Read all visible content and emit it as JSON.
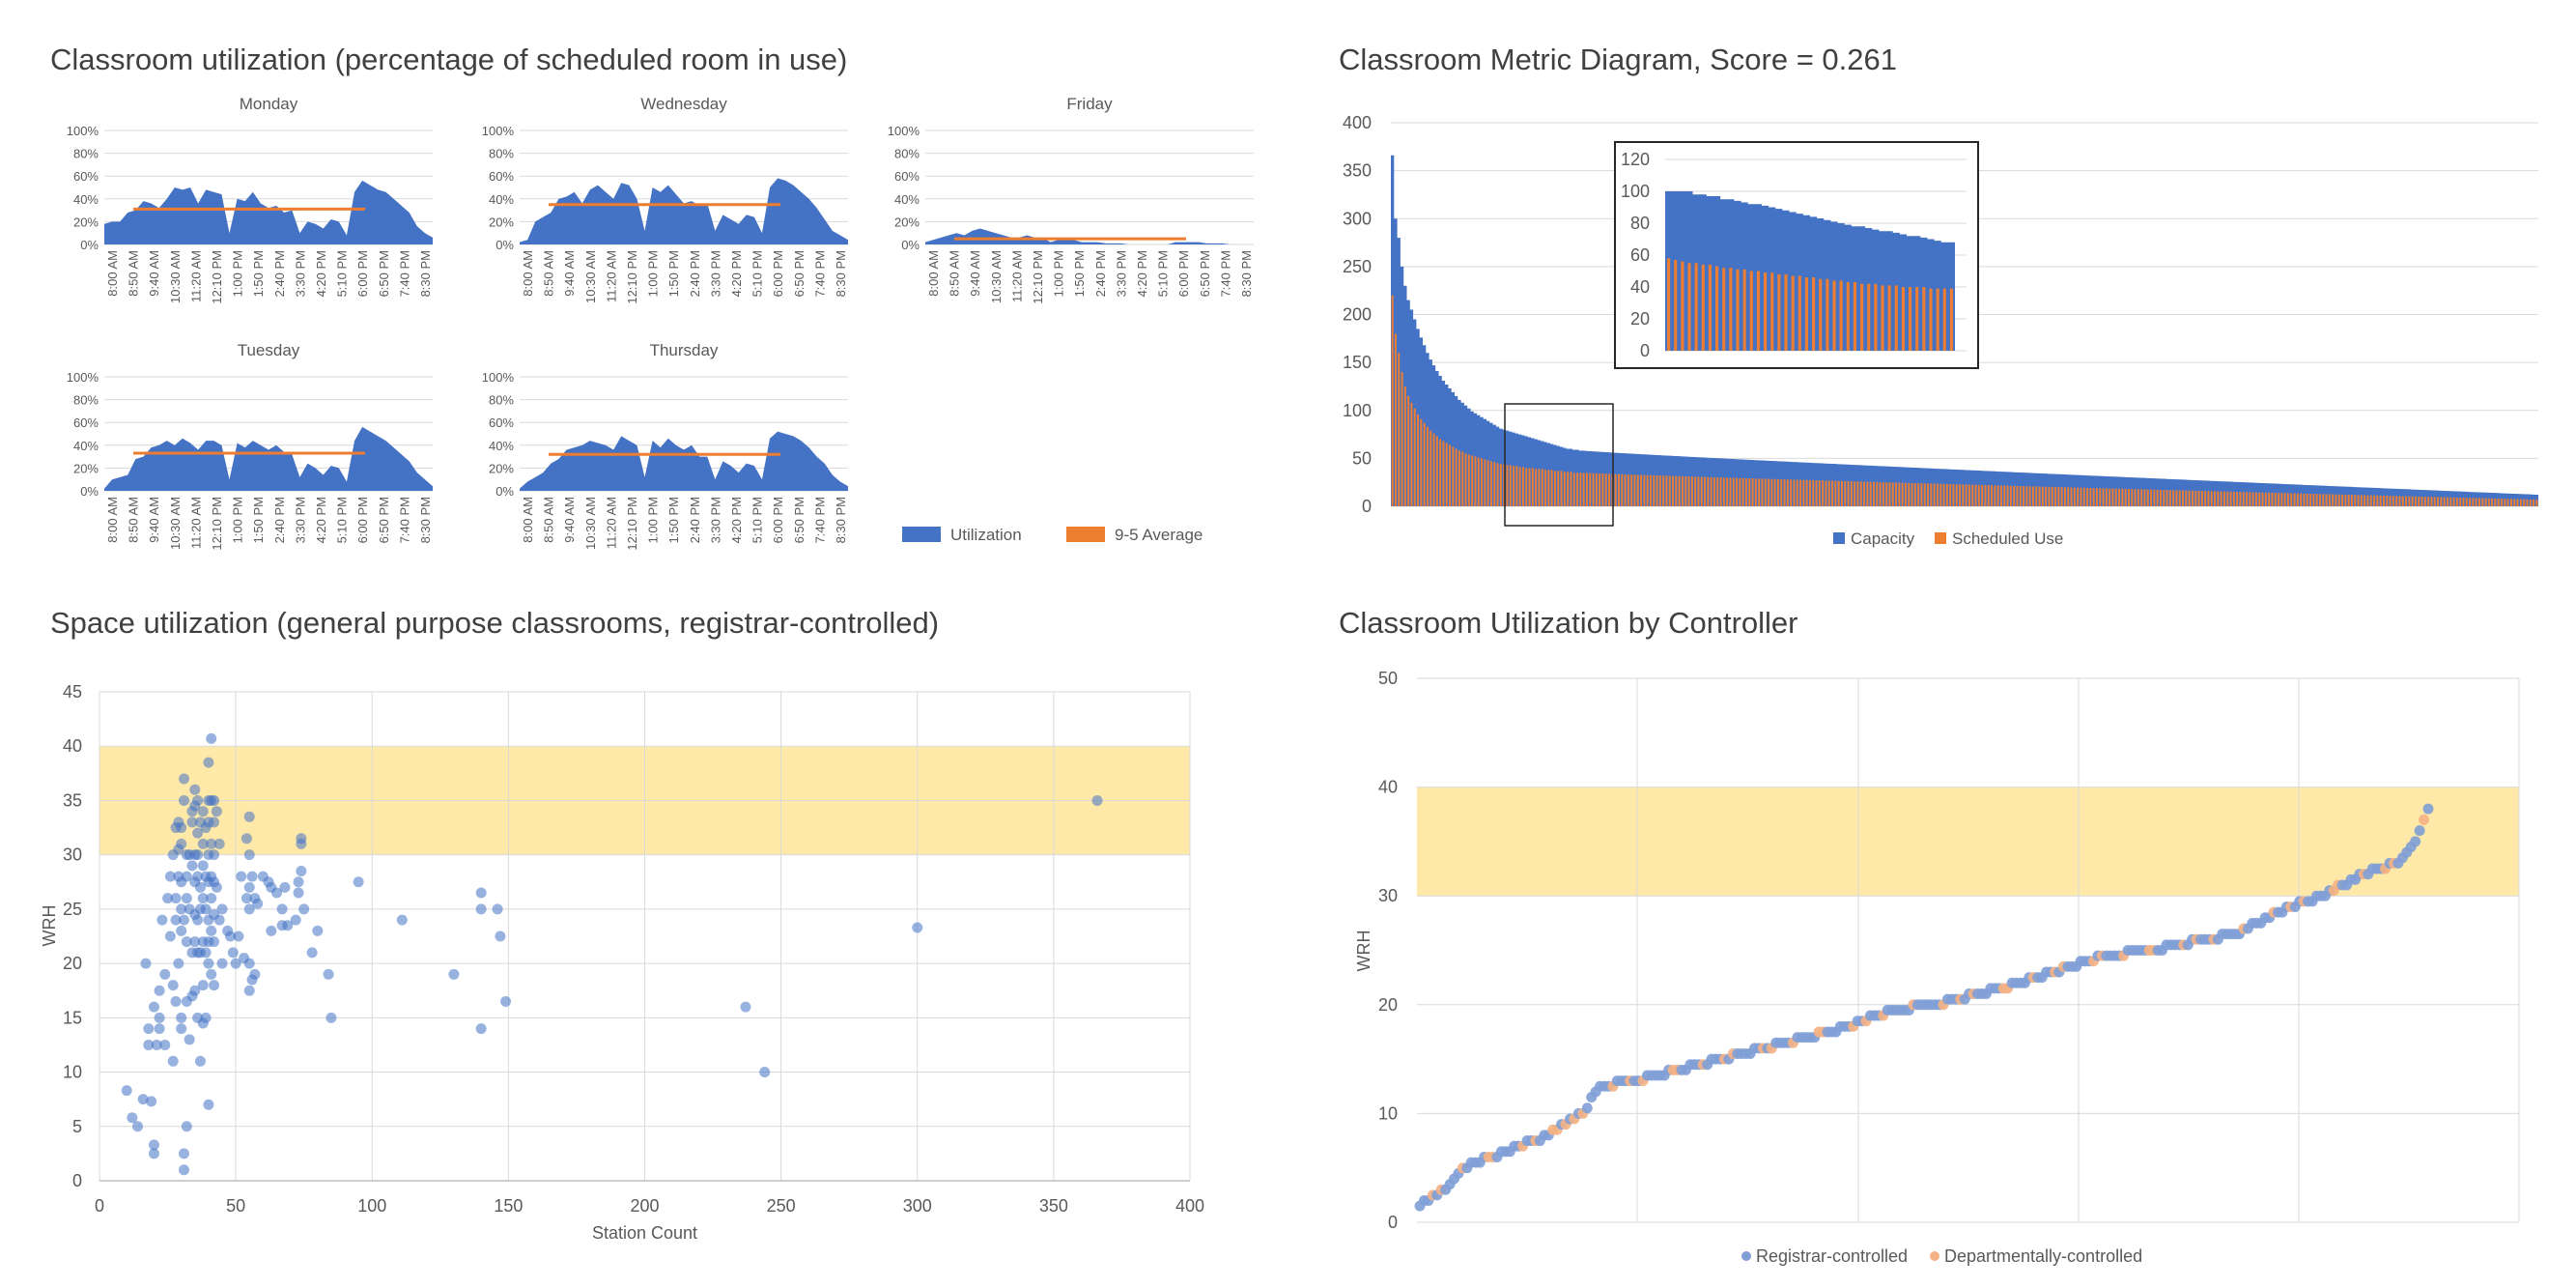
{
  "titles": {
    "util": "Classroom utilization (percentage of scheduled room in use)",
    "metric": "Classroom Metric Diagram, Score = 0.261",
    "space": "Space utilization (general purpose classrooms, registrar-controlled)",
    "controller": "Classroom Utilization by Controller"
  },
  "colors": {
    "blue": "#4472C4",
    "orange": "#ED7D31",
    "band": "#FFE9A8",
    "dot_blue": "#7F9FD6",
    "dot_orange": "#F4B183",
    "grid": "#D9D9D9"
  },
  "chart_data": [
    {
      "id": "daily-utilization",
      "type": "area",
      "time_labels": [
        "8:00 AM",
        "8:50 AM",
        "9:40 AM",
        "10:30 AM",
        "11:20 AM",
        "12:10 PM",
        "1:00 PM",
        "1:50 PM",
        "2:40 PM",
        "3:30 PM",
        "4:20 PM",
        "5:10 PM",
        "6:00 PM",
        "6:50 PM",
        "7:40 PM",
        "8:30 PM"
      ],
      "y_ticks": [
        "0%",
        "20%",
        "40%",
        "60%",
        "80%",
        "100%"
      ],
      "ylim": [
        0,
        100
      ],
      "legend": {
        "utilization": "Utilization",
        "average": "9-5 Average"
      },
      "days": [
        {
          "name": "Monday",
          "average": 31,
          "values": [
            18,
            20,
            20,
            28,
            30,
            38,
            36,
            32,
            40,
            50,
            48,
            50,
            36,
            48,
            46,
            44,
            10,
            40,
            38,
            46,
            36,
            32,
            34,
            28,
            30,
            10,
            20,
            18,
            14,
            22,
            20,
            8,
            46,
            56,
            52,
            48,
            46,
            40,
            34,
            28,
            16,
            10,
            6
          ]
        },
        {
          "name": "Wednesday",
          "average": 35,
          "values": [
            2,
            4,
            20,
            24,
            28,
            40,
            42,
            46,
            36,
            48,
            52,
            46,
            40,
            54,
            52,
            40,
            12,
            50,
            46,
            52,
            44,
            36,
            38,
            34,
            36,
            12,
            26,
            22,
            18,
            26,
            24,
            10,
            50,
            58,
            56,
            52,
            46,
            40,
            32,
            22,
            12,
            8,
            4
          ]
        },
        {
          "name": "Friday",
          "average": 5,
          "values": [
            2,
            4,
            6,
            8,
            10,
            8,
            12,
            14,
            12,
            10,
            8,
            6,
            6,
            8,
            6,
            6,
            2,
            4,
            4,
            4,
            2,
            2,
            2,
            1,
            1,
            1,
            0,
            0,
            0,
            0,
            0,
            0,
            2,
            2,
            2,
            2,
            1,
            1,
            1,
            0,
            0,
            0,
            0
          ]
        },
        {
          "name": "Tuesday",
          "average": 33,
          "values": [
            2,
            10,
            12,
            14,
            28,
            30,
            38,
            40,
            44,
            40,
            46,
            42,
            36,
            44,
            44,
            40,
            10,
            42,
            38,
            44,
            40,
            36,
            40,
            34,
            32,
            12,
            24,
            20,
            14,
            22,
            20,
            8,
            44,
            56,
            52,
            48,
            44,
            38,
            32,
            26,
            16,
            10,
            4
          ]
        },
        {
          "name": "Thursday",
          "average": 32,
          "values": [
            2,
            8,
            12,
            16,
            24,
            28,
            36,
            38,
            40,
            44,
            42,
            40,
            36,
            48,
            44,
            40,
            12,
            44,
            38,
            46,
            40,
            36,
            40,
            30,
            30,
            10,
            26,
            22,
            16,
            24,
            22,
            10,
            46,
            52,
            50,
            48,
            44,
            38,
            30,
            24,
            14,
            8,
            4
          ]
        }
      ]
    },
    {
      "id": "metric-diagram",
      "type": "bar",
      "title": "Classroom Metric Diagram, Score = 0.261",
      "ylim": [
        0,
        400
      ],
      "y_ticks": [
        "0",
        "50",
        "100",
        "150",
        "200",
        "250",
        "300",
        "350",
        "400"
      ],
      "room_count": 360,
      "series": [
        {
          "name": "Capacity",
          "values": [
            366,
            300,
            280,
            250,
            230,
            215,
            205,
            195,
            185,
            176,
            168,
            160,
            153,
            147,
            141,
            136,
            131,
            127,
            123,
            119,
            115,
            111,
            108,
            105,
            102,
            99,
            97,
            95,
            93,
            91,
            89,
            87,
            85,
            83,
            81,
            80,
            79,
            78,
            77,
            76,
            75,
            74,
            73,
            72,
            71,
            70,
            69,
            68,
            67,
            66,
            65,
            64,
            63,
            62,
            61,
            60,
            60,
            59,
            59,
            58
          ]
        },
        {
          "name": "Scheduled Use",
          "values": [
            220,
            180,
            160,
            140,
            125,
            115,
            108,
            102,
            96,
            91,
            87,
            83,
            79,
            76,
            73,
            70,
            68,
            66,
            64,
            62,
            60,
            58,
            57,
            55,
            54,
            53,
            52,
            51,
            50,
            49,
            48,
            47,
            46,
            45,
            44,
            44,
            43,
            43,
            42,
            42,
            41,
            41,
            40,
            40,
            40,
            39,
            39,
            39,
            38,
            38,
            38,
            37,
            37,
            37,
            36,
            36,
            36,
            35,
            35,
            35
          ]
        }
      ],
      "inset": {
        "ylim": [
          0,
          120
        ],
        "y_ticks": [
          "0",
          "20",
          "40",
          "60",
          "80",
          "100",
          "120"
        ],
        "capacity": [
          100,
          100,
          100,
          100,
          98,
          98,
          97,
          97,
          95,
          95,
          94,
          93,
          92,
          92,
          91,
          90,
          89,
          88,
          87,
          86,
          85,
          84,
          83,
          82,
          81,
          80,
          79,
          78,
          78,
          77,
          76,
          75,
          75,
          74,
          73,
          72,
          72,
          71,
          70,
          69,
          68,
          68
        ],
        "scheduled": [
          58,
          57,
          56,
          55,
          55,
          54,
          54,
          53,
          52,
          52,
          51,
          51,
          50,
          50,
          49,
          49,
          48,
          48,
          47,
          47,
          46,
          46,
          45,
          45,
          44,
          44,
          43,
          43,
          42,
          42,
          42,
          41,
          41,
          41,
          40,
          40,
          40,
          40,
          39,
          39,
          39,
          39
        ]
      }
    },
    {
      "id": "space-utilization",
      "type": "scatter",
      "title": "Space utilization (general purpose classrooms, registrar-controlled)",
      "xlabel": "Station Count",
      "ylabel": "WRH",
      "xlim": [
        0,
        400
      ],
      "ylim": [
        0,
        45
      ],
      "x_ticks": [
        "0",
        "50",
        "100",
        "150",
        "200",
        "250",
        "300",
        "350",
        "400"
      ],
      "y_ticks": [
        "0",
        "5",
        "10",
        "15",
        "20",
        "25",
        "30",
        "35",
        "40",
        "45"
      ],
      "band": [
        30,
        40
      ],
      "points": [
        [
          10,
          8.3
        ],
        [
          12,
          5.8
        ],
        [
          14,
          5
        ],
        [
          16,
          7.5
        ],
        [
          17,
          20
        ],
        [
          18,
          14
        ],
        [
          18,
          12.5
        ],
        [
          19,
          7.3
        ],
        [
          20,
          16
        ],
        [
          20,
          3.3
        ],
        [
          20,
          2.5
        ],
        [
          21,
          12.5
        ],
        [
          22,
          17.5
        ],
        [
          22,
          15
        ],
        [
          22,
          14
        ],
        [
          23,
          24
        ],
        [
          24,
          19
        ],
        [
          24,
          12.5
        ],
        [
          25,
          26
        ],
        [
          26,
          28
        ],
        [
          26,
          22.5
        ],
        [
          27,
          30
        ],
        [
          27,
          18
        ],
        [
          27,
          11
        ],
        [
          28,
          32.5
        ],
        [
          28,
          26
        ],
        [
          28,
          24
        ],
        [
          28,
          16.5
        ],
        [
          29,
          33
        ],
        [
          29,
          30.5
        ],
        [
          29,
          28
        ],
        [
          29,
          20
        ],
        [
          30,
          32.5
        ],
        [
          30,
          31
        ],
        [
          30,
          27.5
        ],
        [
          30,
          25
        ],
        [
          30,
          23
        ],
        [
          30,
          15
        ],
        [
          30,
          14
        ],
        [
          31,
          37
        ],
        [
          31,
          35
        ],
        [
          31,
          24
        ],
        [
          31,
          2.5
        ],
        [
          31,
          1
        ],
        [
          32,
          30
        ],
        [
          32,
          28
        ],
        [
          32,
          26
        ],
        [
          32,
          22
        ],
        [
          32,
          16.5
        ],
        [
          32,
          5
        ],
        [
          33,
          30
        ],
        [
          33,
          25
        ],
        [
          33,
          13
        ],
        [
          34,
          34
        ],
        [
          34,
          33
        ],
        [
          34,
          29
        ],
        [
          34,
          21
        ],
        [
          34,
          17
        ],
        [
          35,
          36
        ],
        [
          35,
          34.5
        ],
        [
          35,
          30
        ],
        [
          35,
          27.5
        ],
        [
          35,
          24.5
        ],
        [
          35,
          22
        ],
        [
          35,
          17.5
        ],
        [
          36,
          35
        ],
        [
          36,
          32
        ],
        [
          36,
          30
        ],
        [
          36,
          28
        ],
        [
          36,
          24
        ],
        [
          36,
          21
        ],
        [
          36,
          15
        ],
        [
          37,
          33
        ],
        [
          37,
          27
        ],
        [
          37,
          25
        ],
        [
          37,
          21
        ],
        [
          37,
          11
        ],
        [
          38,
          34
        ],
        [
          38,
          31
        ],
        [
          38,
          29
        ],
        [
          38,
          26
        ],
        [
          38,
          22
        ],
        [
          38,
          18
        ],
        [
          38,
          14.5
        ],
        [
          39,
          32.5
        ],
        [
          39,
          28
        ],
        [
          39,
          25
        ],
        [
          39,
          21
        ],
        [
          39,
          15
        ],
        [
          40,
          38.5
        ],
        [
          40,
          35
        ],
        [
          40,
          33
        ],
        [
          40,
          30
        ],
        [
          40,
          27.5
        ],
        [
          40,
          24
        ],
        [
          40,
          22
        ],
        [
          40,
          20
        ],
        [
          40,
          7
        ],
        [
          41,
          40.7
        ],
        [
          41,
          35
        ],
        [
          41,
          31
        ],
        [
          41,
          28
        ],
        [
          41,
          26
        ],
        [
          41,
          23
        ],
        [
          41,
          19
        ],
        [
          42,
          35
        ],
        [
          42,
          33
        ],
        [
          42,
          30
        ],
        [
          42,
          27.5
        ],
        [
          42,
          24.5
        ],
        [
          42,
          22
        ],
        [
          42,
          18
        ],
        [
          43,
          34
        ],
        [
          43,
          27
        ],
        [
          44,
          31
        ],
        [
          44,
          24
        ],
        [
          45,
          25
        ],
        [
          45,
          20
        ],
        [
          47,
          23
        ],
        [
          48,
          22.5
        ],
        [
          49,
          21
        ],
        [
          50,
          20
        ],
        [
          51,
          22.5
        ],
        [
          52,
          28
        ],
        [
          53,
          20.5
        ],
        [
          54,
          31.5
        ],
        [
          54,
          26
        ],
        [
          55,
          33.5
        ],
        [
          55,
          30
        ],
        [
          55,
          27
        ],
        [
          55,
          25
        ],
        [
          55,
          20
        ],
        [
          55,
          17.5
        ],
        [
          56,
          28
        ],
        [
          56,
          18.5
        ],
        [
          57,
          26
        ],
        [
          57,
          19
        ],
        [
          58,
          25.5
        ],
        [
          60,
          28
        ],
        [
          62,
          27.5
        ],
        [
          63,
          27
        ],
        [
          63,
          23
        ],
        [
          65,
          26.5
        ],
        [
          67,
          25
        ],
        [
          67,
          23.5
        ],
        [
          68,
          27
        ],
        [
          69,
          23.5
        ],
        [
          72,
          24
        ],
        [
          73,
          27.5
        ],
        [
          73,
          26.5
        ],
        [
          74,
          28.5
        ],
        [
          74,
          31.5
        ],
        [
          74,
          31
        ],
        [
          75,
          25
        ],
        [
          78,
          21
        ],
        [
          80,
          23
        ],
        [
          84,
          19
        ],
        [
          85,
          15
        ],
        [
          95,
          27.5
        ],
        [
          111,
          24
        ],
        [
          130,
          19
        ],
        [
          140,
          26.5
        ],
        [
          140,
          25
        ],
        [
          140,
          14
        ],
        [
          146,
          25
        ],
        [
          147,
          22.5
        ],
        [
          149,
          16.5
        ],
        [
          237,
          16
        ],
        [
          244,
          10
        ],
        [
          300,
          23.3
        ],
        [
          366,
          35
        ]
      ]
    },
    {
      "id": "controller-utilization",
      "type": "scatter",
      "title": "Classroom Utilization by Controller",
      "ylabel": "WRH",
      "ylim": [
        0,
        50
      ],
      "y_ticks": [
        "0",
        "10",
        "20",
        "30",
        "40",
        "50"
      ],
      "band": [
        30,
        40
      ],
      "series": [
        {
          "name": "Registrar-controlled"
        },
        {
          "name": "Departmentally-controlled"
        }
      ],
      "room_count": 235,
      "curve_anchors": [
        [
          0,
          1.5
        ],
        [
          4,
          2.5
        ],
        [
          7,
          3.5
        ],
        [
          10,
          5
        ],
        [
          20,
          6.5
        ],
        [
          30,
          8
        ],
        [
          38,
          10
        ],
        [
          42,
          12.5
        ],
        [
          50,
          13
        ],
        [
          60,
          14
        ],
        [
          70,
          15
        ],
        [
          85,
          16.5
        ],
        [
          100,
          18
        ],
        [
          110,
          19.5
        ],
        [
          120,
          20
        ],
        [
          125,
          20.5
        ],
        [
          140,
          22
        ],
        [
          155,
          24
        ],
        [
          160,
          24.5
        ],
        [
          170,
          25
        ],
        [
          190,
          26.5
        ],
        [
          200,
          28.5
        ],
        [
          210,
          30
        ],
        [
          220,
          32
        ],
        [
          228,
          33
        ],
        [
          232,
          35
        ],
        [
          235,
          37.8
        ]
      ]
    }
  ]
}
